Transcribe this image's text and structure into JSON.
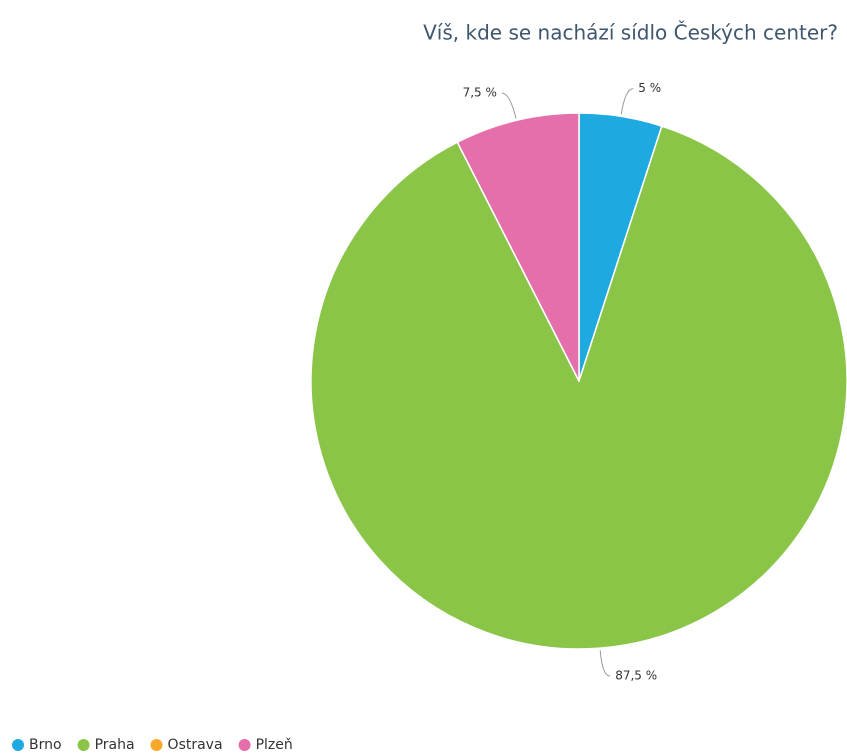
{
  "chart_data": {
    "type": "pie",
    "title": "Víš, kde se nachází sídlo Českých center?",
    "categories": [
      "Brno",
      "Praha",
      "Ostrava",
      "Plzeň"
    ],
    "values": [
      5,
      87.5,
      0,
      7.5
    ],
    "value_labels": [
      "5 %",
      "87,5 %",
      null,
      "7,5 %"
    ],
    "colors": [
      "#1ea9e1",
      "#8bc548",
      "#f8a829",
      "#e56fab"
    ],
    "legend": "bottom-left"
  }
}
